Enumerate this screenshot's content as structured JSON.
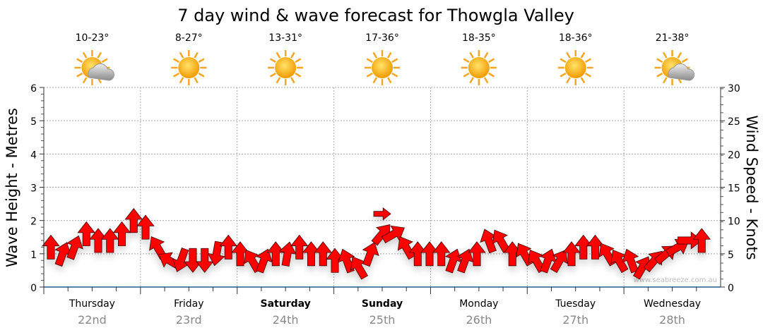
{
  "chart_data": {
    "type": "scatter",
    "title": "7 day wind & wave forecast for Thowgla Valley",
    "ylabel": "Wave Height - Metres",
    "ylabel_right": "Wind Speed - Knots",
    "ylim": [
      0,
      6
    ],
    "ylim_right": [
      0,
      30
    ],
    "yticks": [
      "0",
      "1",
      "2",
      "3",
      "4",
      "5",
      "6"
    ],
    "yticks_right": [
      "0",
      "5",
      "10",
      "15",
      "20",
      "25",
      "30"
    ],
    "grid": true,
    "watermark": "www.seabreeze.com.au",
    "days": [
      {
        "name": "Thursday",
        "date": "22nd",
        "temp": "10-23°",
        "icon": "partly-cloudy",
        "bold": false
      },
      {
        "name": "Friday",
        "date": "23rd",
        "temp": "8-27°",
        "icon": "sunny",
        "bold": false
      },
      {
        "name": "Saturday",
        "date": "24th",
        "temp": "13-31°",
        "icon": "sunny",
        "bold": true
      },
      {
        "name": "Sunday",
        "date": "25th",
        "temp": "17-36°",
        "icon": "sunny",
        "bold": true
      },
      {
        "name": "Monday",
        "date": "26th",
        "temp": "18-35°",
        "icon": "sunny",
        "bold": false
      },
      {
        "name": "Tuesday",
        "date": "27th",
        "temp": "18-36°",
        "icon": "sunny",
        "bold": false
      },
      {
        "name": "Wednesday",
        "date": "28th",
        "temp": "21-38°",
        "icon": "partly-cloudy",
        "bold": false
      }
    ],
    "series": [
      {
        "name": "Wind speed (knots)",
        "interval_hours": 3,
        "values": [
          6,
          5,
          6,
          8,
          7,
          7,
          8,
          10,
          9,
          6,
          4,
          4,
          4,
          4,
          5,
          6,
          5,
          4,
          4,
          5,
          5,
          6,
          5,
          5,
          4,
          4,
          3,
          5,
          8,
          8,
          6,
          5,
          5,
          5,
          4,
          4,
          5,
          7,
          7,
          5,
          5,
          4,
          4,
          4,
          5,
          6,
          6,
          5,
          4,
          4,
          3,
          4,
          5,
          6,
          7,
          7
        ],
        "direction_deg": [
          0,
          20,
          20,
          0,
          0,
          0,
          0,
          0,
          0,
          330,
          300,
          200,
          180,
          180,
          190,
          0,
          0,
          330,
          20,
          0,
          10,
          0,
          0,
          0,
          0,
          340,
          330,
          20,
          40,
          60,
          330,
          0,
          0,
          0,
          20,
          20,
          0,
          340,
          330,
          0,
          330,
          330,
          20,
          30,
          0,
          0,
          0,
          330,
          330,
          340,
          30,
          40,
          50,
          60,
          90,
          0
        ]
      },
      {
        "name": "Wind arrow (highlight)",
        "values": [
          11
        ],
        "hour": [
          84
        ],
        "direction_deg": [
          90
        ]
      }
    ]
  }
}
